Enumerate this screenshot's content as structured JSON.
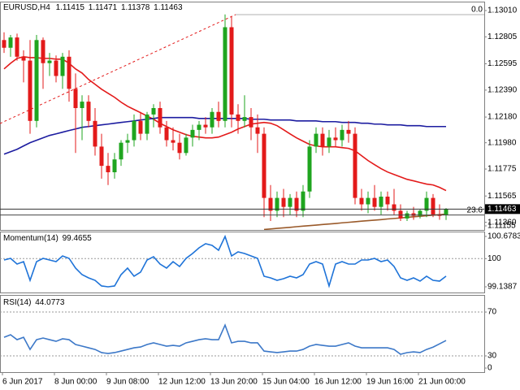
{
  "chart_data": [
    {
      "type": "candlestick",
      "title": "EURUSD,H4",
      "categories": [
        "6 Jun 2017",
        null,
        null,
        null,
        null,
        null,
        null,
        null,
        "8 Jun 00:00",
        null,
        null,
        null,
        null,
        null,
        null,
        null,
        "9 Jun 08:00",
        null,
        null,
        null,
        null,
        null,
        null,
        null,
        "12 Jun 12:00",
        null,
        null,
        null,
        null,
        null,
        null,
        null,
        "13 Jun 20:00",
        null,
        null,
        null,
        null,
        null,
        null,
        null,
        "15 Jun 04:00",
        null,
        null,
        null,
        null,
        null,
        null,
        null,
        "16 Jun 12:00",
        null,
        null,
        null,
        null,
        null,
        null,
        null,
        "19 Jun 16:00",
        null,
        null,
        null,
        null,
        null,
        null,
        null,
        "21 Jun 00:00",
        null,
        null,
        null,
        null
      ],
      "open": [
        1.1278,
        1.1272,
        1.128,
        1.1265,
        1.1262,
        1.1215,
        1.1278,
        1.126,
        1.1262,
        1.125,
        1.1265,
        1.124,
        1.1225,
        1.123,
        1.1215,
        1.1195,
        1.118,
        1.1175,
        1.1185,
        1.1198,
        1.12,
        1.1215,
        1.1205,
        1.122,
        1.1225,
        1.121,
        1.12,
        1.1198,
        1.119,
        1.1202,
        1.1208,
        1.1212,
        1.121,
        1.1222,
        1.1215,
        1.1288,
        1.122,
        1.1215,
        1.1218,
        1.121,
        1.1205,
        1.1155,
        1.1145,
        1.1155,
        1.1148,
        1.1155,
        1.1145,
        1.116,
        1.1195,
        1.1205,
        1.1195,
        1.1202,
        1.12,
        1.1208,
        1.1205,
        1.1155,
        1.115,
        1.1155,
        1.1148,
        1.1156,
        1.115,
        1.1145,
        1.1139,
        1.1143,
        1.1141,
        1.1145,
        1.1155,
        1.1142,
        1.11415
      ],
      "high": [
        1.1284,
        1.1282,
        1.1283,
        1.127,
        1.1278,
        1.1282,
        1.128,
        1.1268,
        1.1266,
        1.1268,
        1.127,
        1.1252,
        1.1235,
        1.1235,
        1.1225,
        1.1205,
        1.119,
        1.119,
        1.12,
        1.1205,
        1.122,
        1.1222,
        1.1222,
        1.1228,
        1.123,
        1.1215,
        1.121,
        1.1205,
        1.1205,
        1.1212,
        1.1215,
        1.1218,
        1.1225,
        1.123,
        1.1298,
        1.1296,
        1.1228,
        1.1235,
        1.1225,
        1.122,
        1.121,
        1.1165,
        1.116,
        1.1162,
        1.1158,
        1.116,
        1.1165,
        1.12,
        1.121,
        1.121,
        1.1208,
        1.121,
        1.1212,
        1.1215,
        1.121,
        1.1162,
        1.116,
        1.1165,
        1.116,
        1.116,
        1.1162,
        1.115,
        1.1145,
        1.1148,
        1.1146,
        1.116,
        1.1158,
        1.115,
        1.11471
      ],
      "low": [
        1.1268,
        1.1265,
        1.1262,
        1.1245,
        1.1205,
        1.121,
        1.124,
        1.125,
        1.1245,
        1.124,
        1.123,
        1.119,
        1.12,
        1.121,
        1.1188,
        1.117,
        1.1165,
        1.117,
        1.118,
        1.119,
        1.1195,
        1.12,
        1.12,
        1.121,
        1.1205,
        1.1195,
        1.1192,
        1.1185,
        1.1188,
        1.1195,
        1.12,
        1.1205,
        1.1205,
        1.121,
        1.121,
        1.121,
        1.1205,
        1.121,
        1.12,
        1.119,
        1.114,
        1.1137,
        1.114,
        1.114,
        1.1142,
        1.114,
        1.114,
        1.1155,
        1.119,
        1.1188,
        1.119,
        1.1195,
        1.1195,
        1.1198,
        1.115,
        1.1145,
        1.1143,
        1.1145,
        1.1142,
        1.1145,
        1.1142,
        1.1137,
        1.1137,
        1.1138,
        1.1139,
        1.114,
        1.114,
        1.1138,
        1.11378
      ],
      "close": [
        1.1272,
        1.128,
        1.1265,
        1.1262,
        1.1215,
        1.1278,
        1.126,
        1.1262,
        1.125,
        1.1265,
        1.124,
        1.1225,
        1.123,
        1.1215,
        1.1195,
        1.118,
        1.1175,
        1.1185,
        1.1198,
        1.12,
        1.1215,
        1.1205,
        1.122,
        1.1225,
        1.121,
        1.12,
        1.1198,
        1.119,
        1.1202,
        1.1208,
        1.1212,
        1.121,
        1.1222,
        1.1215,
        1.1288,
        1.122,
        1.1215,
        1.1218,
        1.121,
        1.1205,
        1.1155,
        1.1145,
        1.1155,
        1.1148,
        1.1155,
        1.1145,
        1.116,
        1.1195,
        1.1205,
        1.1195,
        1.1202,
        1.12,
        1.1208,
        1.1205,
        1.1155,
        1.115,
        1.1155,
        1.1148,
        1.1156,
        1.115,
        1.1145,
        1.1139,
        1.1143,
        1.1141,
        1.1145,
        1.1155,
        1.1142,
        1.1141,
        1.11463
      ],
      "colors": {
        "up": "#1fa51f",
        "down": "#e31a1a"
      },
      "series": [
        {
          "color": "#e31a1a",
          "values": [
            1.12555,
            1.12599,
            1.12637,
            1.1265,
            1.12643,
            1.12643,
            1.12637,
            1.12637,
            1.12631,
            1.12631,
            1.12599,
            1.12555,
            1.12523,
            1.12473,
            1.12435,
            1.12397,
            1.12365,
            1.12334,
            1.12296,
            1.12264,
            1.12239,
            1.12214,
            1.12188,
            1.12163,
            1.12132,
            1.12106,
            1.12081,
            1.12062,
            1.12043,
            1.1203,
            1.12024,
            1.12018,
            1.12018,
            1.12024,
            1.12043,
            1.12062,
            1.12087,
            1.12106,
            1.12125,
            1.12132,
            1.12138,
            1.12132,
            1.12113,
            1.12081,
            1.12049,
            1.12018,
            1.11992,
            1.11967,
            1.11955,
            1.11948,
            1.11948,
            1.11948,
            1.11942,
            1.11936,
            1.11917,
            1.11879,
            1.11841,
            1.11809,
            1.11778,
            1.11752,
            1.11733,
            1.11714,
            1.11695,
            1.11683,
            1.1167,
            1.11658,
            1.11651,
            1.11632,
            1.11607
          ]
        },
        {
          "color": "#1c1ca0",
          "values": [
            1.11891,
            1.1191,
            1.11929,
            1.11955,
            1.1198,
            1.11999,
            1.12018,
            1.12037,
            1.12049,
            1.12062,
            1.12075,
            1.12087,
            1.121,
            1.12106,
            1.12113,
            1.12119,
            1.12125,
            1.12132,
            1.12138,
            1.12144,
            1.1215,
            1.12157,
            1.12163,
            1.12169,
            1.12176,
            1.12176,
            1.12176,
            1.12176,
            1.12176,
            1.12176,
            1.12169,
            1.12169,
            1.12169,
            1.12169,
            1.12169,
            1.12169,
            1.12169,
            1.12169,
            1.12163,
            1.12163,
            1.12163,
            1.12157,
            1.12157,
            1.12157,
            1.12157,
            1.1215,
            1.1215,
            1.1215,
            1.1215,
            1.12144,
            1.12144,
            1.12144,
            1.12138,
            1.12138,
            1.12138,
            1.12132,
            1.12132,
            1.12125,
            1.12125,
            1.12119,
            1.12119,
            1.12119,
            1.12113,
            1.12113,
            1.12113,
            1.12106,
            1.12106,
            1.12106,
            1.12106
          ]
        },
        {
          "color": "#9a5a2a",
          "values": [
            null,
            null,
            null,
            null,
            null,
            null,
            null,
            null,
            null,
            null,
            null,
            null,
            null,
            null,
            null,
            null,
            null,
            null,
            null,
            null,
            null,
            null,
            null,
            null,
            null,
            null,
            null,
            null,
            null,
            null,
            null,
            null,
            null,
            null,
            null,
            null,
            null,
            null,
            null,
            null,
            1.11304,
            1.11308,
            1.11313,
            1.11317,
            1.11321,
            1.11326,
            1.1133,
            1.11334,
            1.11338,
            1.11343,
            1.11347,
            1.11351,
            1.11356,
            1.1136,
            1.11364,
            1.11369,
            1.11373,
            1.11377,
            1.11381,
            1.11386,
            1.1139,
            1.11394,
            1.11399,
            1.11403,
            1.11407,
            1.11412,
            1.11416,
            1.1142,
            1.11424
          ]
        }
      ],
      "fibo": {
        "levels": [
          {
            "value": 0,
            "label": "0.0"
          },
          23.6
        ],
        "prices": [
          1.12978,
          1.11417
        ]
      },
      "ylim": [
        1.11155,
        1.13073
      ],
      "yticks": [
        {
          "value": 1.1301,
          "label": "1.13010"
        },
        1.12805,
        1.12595,
        {
          "value": 1.1239,
          "label": "1.12390"
        },
        {
          "value": 1.1218,
          "label": "1.12180"
        },
        {
          "value": 1.1198,
          "label": "1.11980"
        },
        1.11775,
        1.11565,
        {
          "value": 1.1136,
          "label": "1.11360"
        },
        1.11155
      ]
    },
    {
      "type": "line",
      "title": "Momentum(14)",
      "color": "#1e73d8",
      "values": [
        99.958,
        100.008,
        99.834,
        99.908,
        99.337,
        99.908,
        100.008,
        99.958,
        99.908,
        100.082,
        100.008,
        99.71,
        99.511,
        99.412,
        99.337,
        99.164,
        99.139,
        99.164,
        99.511,
        99.71,
        99.462,
        99.586,
        99.958,
        100.058,
        99.834,
        99.71,
        99.908,
        99.76,
        100.008,
        100.157,
        100.331,
        100.455,
        100.405,
        100.256,
        100.678,
        100.082,
        100.207,
        100.157,
        100.082,
        100.008,
        99.462,
        99.412,
        99.337,
        99.387,
        99.462,
        99.412,
        99.511,
        99.834,
        99.908,
        99.834,
        99.164,
        99.834,
        99.908,
        99.834,
        99.834,
        99.958,
        99.958,
        100.008,
        99.908,
        99.958,
        99.76,
        99.412,
        99.337,
        99.412,
        99.313,
        99.462,
        99.337,
        99.313,
        99.4655
      ],
      "levels": [
        100
      ],
      "ylim": [
        98.965,
        100.827
      ],
      "yticks": [
        100.6783,
        100,
        99.1387
      ]
    },
    {
      "type": "line",
      "title": "RSI(14)",
      "color": "#3c78c8",
      "values": [
        47.0,
        49.3,
        44.8,
        47.0,
        35.9,
        44.8,
        46.3,
        44.8,
        43.3,
        45.6,
        44.8,
        40.4,
        38.9,
        37.4,
        35.9,
        33.0,
        32.2,
        33.0,
        34.4,
        35.9,
        37.4,
        38.1,
        40.4,
        41.9,
        40.4,
        38.9,
        39.6,
        38.9,
        41.9,
        43.3,
        44.8,
        45.6,
        44.8,
        44.8,
        58.1,
        41.9,
        43.3,
        43.3,
        41.9,
        41.9,
        34.4,
        33.7,
        33.0,
        33.7,
        34.4,
        34.4,
        35.9,
        38.9,
        40.4,
        39.6,
        38.9,
        38.9,
        40.4,
        41.9,
        38.9,
        37.4,
        37.4,
        37.4,
        37.4,
        37.4,
        35.9,
        31.5,
        33.0,
        33.7,
        33.0,
        35.9,
        38.0,
        41.0,
        44.0773
      ],
      "levels": [
        70,
        30
      ],
      "ylim": [
        15.2,
        85.6
      ],
      "yticks": [
        70,
        30,
        0
      ]
    }
  ]
}
